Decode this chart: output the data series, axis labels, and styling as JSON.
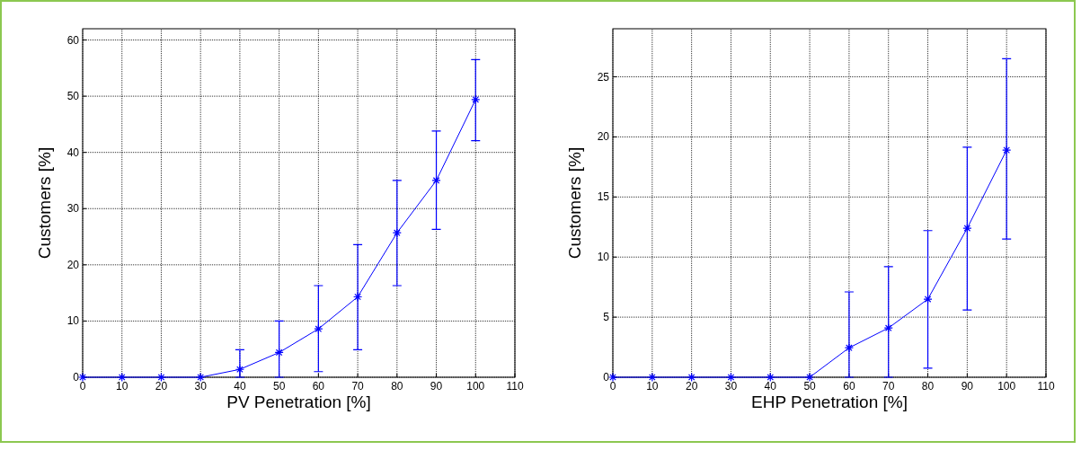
{
  "chart_data": [
    {
      "type": "line",
      "xlabel": "PV Penetration [%]",
      "ylabel": "Customers [%]",
      "xlim": [
        0,
        110
      ],
      "xticks": [
        0,
        10,
        20,
        30,
        40,
        50,
        60,
        70,
        80,
        90,
        100,
        110
      ],
      "ylim": [
        0,
        62
      ],
      "yticks": [
        0,
        10,
        20,
        30,
        40,
        50,
        60
      ],
      "grid": true,
      "marker": "cross",
      "line_style": "solid",
      "series": [
        {
          "color": "#0000ff",
          "x": [
            0,
            10,
            20,
            30,
            40,
            50,
            60,
            70,
            80,
            90,
            100
          ],
          "values": [
            0,
            0,
            0,
            0,
            1.4,
            4.4,
            8.6,
            14.3,
            25.7,
            35.0,
            49.4
          ],
          "errors": [
            null,
            null,
            null,
            null,
            [
              0,
              4.9
            ],
            [
              0,
              10
            ],
            [
              1.0,
              16.3
            ],
            [
              4.9,
              23.6
            ],
            [
              16.3,
              35.0
            ],
            [
              26.3,
              43.8
            ],
            [
              42.1,
              56.5
            ]
          ]
        }
      ]
    },
    {
      "type": "line",
      "xlabel": "EHP Penetration [%]",
      "ylabel": "Customers [%]",
      "xlim": [
        0,
        110
      ],
      "xticks": [
        0,
        10,
        20,
        30,
        40,
        50,
        60,
        70,
        80,
        90,
        100,
        110
      ],
      "ylim": [
        0,
        29
      ],
      "yticks": [
        0,
        5,
        10,
        15,
        20,
        25
      ],
      "grid": true,
      "marker": "cross",
      "line_style": "solid",
      "series": [
        {
          "color": "#0000ff",
          "x": [
            0,
            10,
            20,
            30,
            40,
            50,
            60,
            70,
            80,
            90,
            100
          ],
          "values": [
            0,
            0,
            0,
            0,
            0,
            0,
            2.45,
            4.1,
            6.5,
            12.4,
            18.9
          ],
          "errors": [
            null,
            null,
            null,
            null,
            null,
            null,
            [
              0,
              7.1
            ],
            [
              0,
              9.2
            ],
            [
              0.75,
              12.2
            ],
            [
              5.6,
              19.15
            ],
            [
              11.5,
              26.5
            ]
          ]
        }
      ]
    }
  ]
}
